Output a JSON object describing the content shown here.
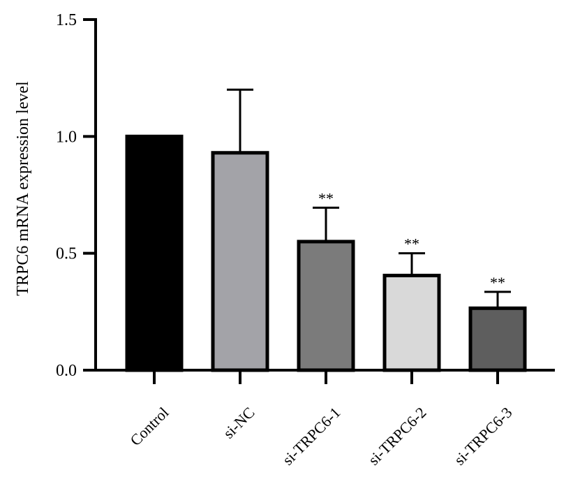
{
  "chart_data": {
    "type": "bar",
    "title": "",
    "xlabel": "",
    "ylabel": "TRPC6 mRNA expression level",
    "ylim": [
      0,
      1.5
    ],
    "yticks": [
      "0.0",
      "0.5",
      "1.0",
      "1.5"
    ],
    "categories": [
      "Control",
      "si-NC",
      "si-TRPC6-1",
      "si-TRPC6-2",
      "si-TRPC6-3"
    ],
    "values": [
      1.0,
      0.93,
      0.55,
      0.405,
      0.265
    ],
    "error_upper": [
      0.0,
      0.27,
      0.145,
      0.095,
      0.07
    ],
    "significance": [
      "",
      "",
      "**",
      "**",
      "**"
    ],
    "colors": [
      "#000000",
      "#a3a3a8",
      "#7b7b7b",
      "#d9d9d9",
      "#5e5e5e"
    ],
    "grid": false,
    "legend": "none"
  }
}
